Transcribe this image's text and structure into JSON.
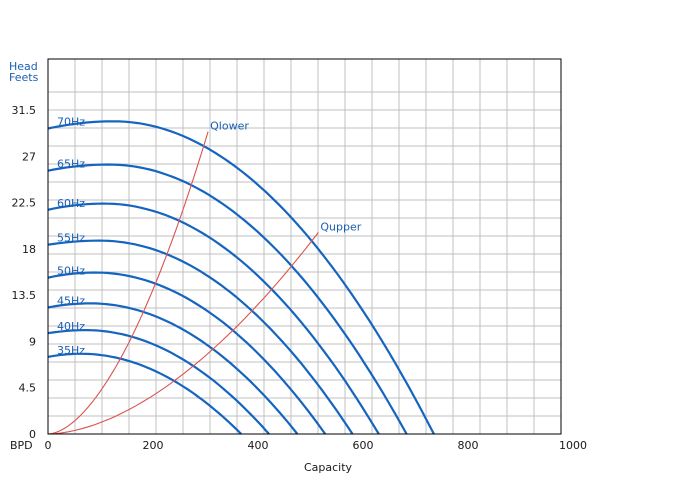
{
  "chart_data": {
    "type": "line",
    "title": "",
    "xlabel": "Capacity",
    "x_unit_label": "BPD",
    "ylabel_lines": [
      "Head",
      "Feets"
    ],
    "xlim": [
      0,
      1000
    ],
    "ylim": [
      0,
      31.5
    ],
    "grid": true,
    "x_ticks": [
      "0",
      "200",
      "400",
      "600",
      "800",
      "1000"
    ],
    "y_ticks": [
      "0",
      "4.5",
      "9",
      "13.5",
      "18",
      "22.5",
      "27",
      "31.5"
    ],
    "colors": {
      "curves": "#1565c0",
      "boundaries": "#d9534f",
      "grid": "#c0c0c0",
      "frame": "#000000",
      "labels": "#1a5fb4"
    },
    "series": [
      {
        "name": "70Hz",
        "head0": 29.7,
        "zero_flow": 735,
        "peak_head": 30.4
      },
      {
        "name": "65Hz",
        "head0": 25.6,
        "zero_flow": 683,
        "peak_head": 26.2
      },
      {
        "name": "60Hz",
        "head0": 21.8,
        "zero_flow": 630,
        "peak_head": 22.4
      },
      {
        "name": "55Hz",
        "head0": 18.4,
        "zero_flow": 580,
        "peak_head": 18.8
      },
      {
        "name": "50Hz",
        "head0": 15.2,
        "zero_flow": 528,
        "peak_head": 15.7
      },
      {
        "name": "45Hz",
        "head0": 12.3,
        "zero_flow": 475,
        "peak_head": 12.7
      },
      {
        "name": "40Hz",
        "head0": 9.8,
        "zero_flow": 421,
        "peak_head": 10.1
      },
      {
        "name": "35Hz",
        "head0": 7.5,
        "zero_flow": 368,
        "peak_head": 7.8
      }
    ],
    "boundaries": [
      {
        "name": "Qlower",
        "end": [
          305,
          29.4
        ]
      },
      {
        "name": "Qupper",
        "end": [
          515,
          19.6
        ]
      }
    ]
  }
}
